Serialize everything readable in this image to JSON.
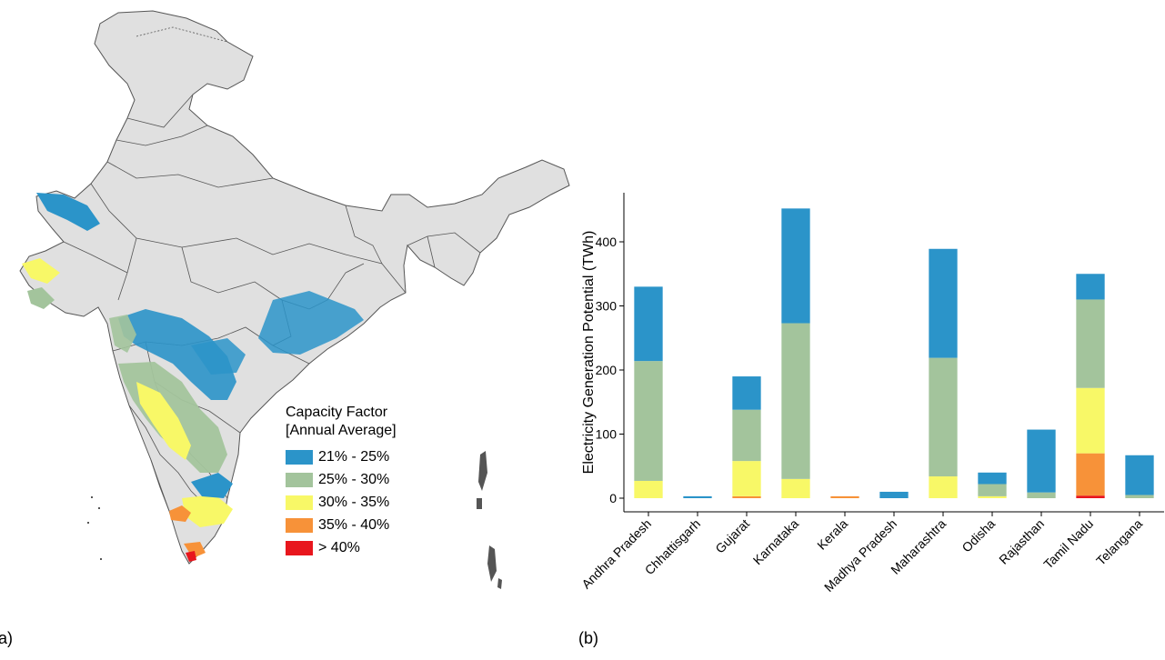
{
  "panels": {
    "a_label": "(a)",
    "b_label": "(b)"
  },
  "colors": {
    "cf_21_25": "#2b94c9",
    "cf_25_30": "#a3c49c",
    "cf_30_35": "#f8f867",
    "cf_35_40": "#f79239",
    "cf_gt_40": "#e8161d",
    "map_land": "#e0e0e0",
    "map_border": "#555555"
  },
  "map": {
    "legend": {
      "title_line1": "Capacity Factor",
      "title_line2": "[Annual Average]",
      "items": [
        {
          "label": "21% - 25%",
          "color": "#2b94c9"
        },
        {
          "label": "25% - 30%",
          "color": "#a3c49c"
        },
        {
          "label": "30% - 35%",
          "color": "#f8f867"
        },
        {
          "label": "35% - 40%",
          "color": "#f79239"
        },
        {
          "label": "> 40%",
          "color": "#e8161d"
        }
      ]
    }
  },
  "chart_data": {
    "type": "bar",
    "stacked": true,
    "ylabel": "Electricity Generation Potential (TWh)",
    "xlabel": "",
    "ylim": [
      0,
      450
    ],
    "yticks": [
      0,
      100,
      200,
      300,
      400
    ],
    "categories": [
      "Andhra Pradesh",
      "Chhattisgarh",
      "Gujarat",
      "Karnataka",
      "Kerala",
      "Madhya Pradesh",
      "Maharashtra",
      "Odisha",
      "Rajasthan",
      "Tamil Nadu",
      "Telangana"
    ],
    "series": [
      {
        "name": "> 40%",
        "color": "#e8161d",
        "values": [
          0,
          0,
          0,
          0,
          0,
          0,
          0,
          0,
          0,
          4,
          0
        ]
      },
      {
        "name": "35% - 40%",
        "color": "#f79239",
        "values": [
          0,
          0,
          3,
          0,
          3,
          0,
          0,
          0,
          0,
          66,
          0
        ]
      },
      {
        "name": "30% - 35%",
        "color": "#f8f867",
        "values": [
          27,
          0,
          55,
          30,
          0,
          0,
          34,
          3,
          0,
          102,
          0
        ]
      },
      {
        "name": "25% - 30%",
        "color": "#a3c49c",
        "values": [
          187,
          0,
          80,
          243,
          0,
          0,
          185,
          19,
          9,
          138,
          5
        ]
      },
      {
        "name": "21% - 25%",
        "color": "#2b94c9",
        "values": [
          116,
          3,
          52,
          179,
          0,
          10,
          170,
          18,
          98,
          40,
          62
        ]
      }
    ]
  }
}
